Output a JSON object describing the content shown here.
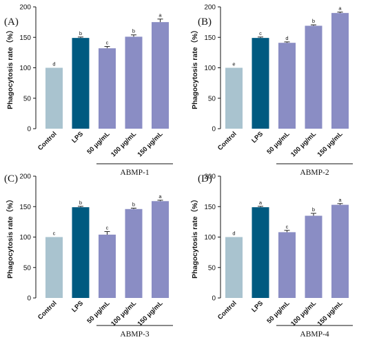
{
  "chart_data": [
    {
      "type": "bar",
      "panel_label": "(A)",
      "categories": [
        "Control",
        "LPS",
        "50 μg/mL",
        "100 μg/mL",
        "150 μg/mL"
      ],
      "values": [
        100,
        149,
        132,
        151,
        175
      ],
      "errors": [
        0,
        1.5,
        3,
        3,
        5
      ],
      "significance": [
        "d",
        "b",
        "c",
        "b",
        "a"
      ],
      "ylabel": "Phagocytosis rate（%）",
      "ylim": [
        0,
        200
      ],
      "yticks": [
        "0",
        "50",
        "100",
        "150",
        "200"
      ],
      "group_label": "ABMP-1",
      "grid": false
    },
    {
      "type": "bar",
      "panel_label": "(B)",
      "categories": [
        "Control",
        "LPS",
        "50 μg/mL",
        "100 μg/mL",
        "150 μg/mL"
      ],
      "values": [
        100,
        149,
        141,
        169,
        190
      ],
      "errors": [
        0,
        1.5,
        1.5,
        1.5,
        1.5
      ],
      "significance": [
        "e",
        "c",
        "d",
        "b",
        "a"
      ],
      "ylabel": "Phagocytosis rate（%）",
      "ylim": [
        0,
        200
      ],
      "yticks": [
        "0",
        "50",
        "100",
        "150",
        "200"
      ],
      "group_label": "ABMP-2",
      "grid": false
    },
    {
      "type": "bar",
      "panel_label": "(C)",
      "categories": [
        "Control",
        "LPS",
        "50 μg/mL",
        "100 μg/mL",
        "150 μg/mL"
      ],
      "values": [
        100,
        149,
        104,
        146,
        159
      ],
      "errors": [
        0,
        1.5,
        5,
        1.5,
        1.5
      ],
      "significance": [
        "c",
        "b",
        "c",
        "b",
        "a"
      ],
      "ylabel": "Phagocytosis rate（%）",
      "ylim": [
        0,
        200
      ],
      "yticks": [
        "0",
        "50",
        "100",
        "150",
        "200"
      ],
      "group_label": "ABMP-3",
      "grid": false
    },
    {
      "type": "bar",
      "panel_label": "(D)",
      "categories": [
        "Control",
        "LPS",
        "50 μg/mL",
        "100 μg/mL",
        "150 μg/mL"
      ],
      "values": [
        100,
        149,
        108,
        135,
        153
      ],
      "errors": [
        0,
        1.5,
        3,
        4,
        2
      ],
      "significance": [
        "d",
        "a",
        "c",
        "b",
        "a"
      ],
      "ylabel": "Phagocytosis rate（%）",
      "ylim": [
        0,
        200
      ],
      "yticks": [
        "0",
        "50",
        "100",
        "150",
        "200"
      ],
      "group_label": "ABMP-4",
      "grid": false
    }
  ],
  "colors": {
    "control": "#a9c3cf",
    "lps": "#005a80",
    "treatment": "#8a8dc4"
  }
}
